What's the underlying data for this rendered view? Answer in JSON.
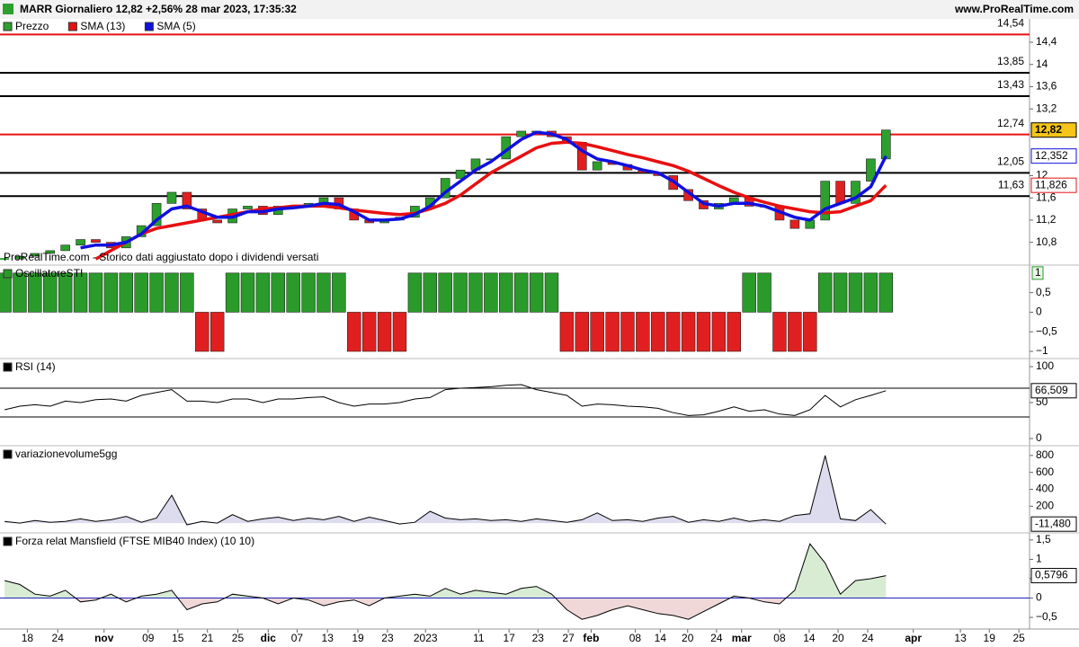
{
  "header": {
    "title": "MARR Giornaliero 12,82 +2,56% 28 mar 2023, 17:35:32",
    "site": "www.ProRealTime.com",
    "watermark": "ProRealTime.com - Storico dati aggiustato dopo i dividendi versati"
  },
  "chart_data": [
    {
      "type": "candlestick",
      "x": [
        0,
        2,
        4,
        6,
        8,
        10,
        12,
        14,
        16,
        18,
        20,
        22,
        24,
        26,
        28,
        30,
        32,
        34,
        36,
        38,
        40,
        42,
        44,
        46,
        48,
        50,
        52,
        54,
        56,
        58,
        60,
        62,
        64,
        66,
        68,
        70,
        72,
        74,
        76,
        78,
        80,
        82,
        84,
        86,
        88,
        90,
        92,
        94,
        96,
        98,
        100,
        102,
        104,
        106,
        108,
        110,
        112,
        114,
        116
      ],
      "xlim": [
        -0.6,
        134.9
      ],
      "xticks": [
        {
          "value": 3,
          "label": "18"
        },
        {
          "value": 7,
          "label": "24"
        },
        {
          "value": 13.1,
          "label": "nov"
        },
        {
          "value": 18.9,
          "label": "09"
        },
        {
          "value": 22.8,
          "label": "15"
        },
        {
          "value": 26.7,
          "label": "21"
        },
        {
          "value": 30.7,
          "label": "25"
        },
        {
          "value": 34.7,
          "label": "dic"
        },
        {
          "value": 38.5,
          "label": "07"
        },
        {
          "value": 42.5,
          "label": "13"
        },
        {
          "value": 46.5,
          "label": "19"
        },
        {
          "value": 50.4,
          "label": "23"
        },
        {
          "value": 55.4,
          "label": "2023"
        },
        {
          "value": 62.4,
          "label": "11"
        },
        {
          "value": 66.4,
          "label": "17"
        },
        {
          "value": 70.2,
          "label": "23"
        },
        {
          "value": 74.2,
          "label": "27"
        },
        {
          "value": 77.2,
          "label": "feb"
        },
        {
          "value": 83,
          "label": "08"
        },
        {
          "value": 86.3,
          "label": "14"
        },
        {
          "value": 89.9,
          "label": "20"
        },
        {
          "value": 93.7,
          "label": "24"
        },
        {
          "value": 97,
          "label": "mar"
        },
        {
          "value": 102,
          "label": "08"
        },
        {
          "value": 105.9,
          "label": "14"
        },
        {
          "value": 109.7,
          "label": "20"
        },
        {
          "value": 113.6,
          "label": "24"
        },
        {
          "value": 119.6,
          "label": "apr"
        },
        {
          "value": 125.8,
          "label": "13"
        },
        {
          "value": 129.6,
          "label": "19"
        },
        {
          "value": 133.5,
          "label": "25"
        }
      ],
      "ylim": [
        10.39,
        14.82
      ],
      "yticks": [
        {
          "value": 14.4,
          "label": "14,4"
        },
        14,
        {
          "value": 13.6,
          "label": "13,6"
        },
        {
          "value": 13.2,
          "label": "13,2"
        },
        12,
        {
          "value": 11.6,
          "label": "11,6"
        },
        {
          "value": 11.2,
          "label": "11,2"
        },
        {
          "value": 10.8,
          "label": "10,8"
        }
      ],
      "up_color": "#2ca02c",
      "down_color": "#e02020",
      "series": [
        {
          "name": "Prezzo",
          "color": "#2ca02c",
          "last_label": "12,82",
          "values": [
            10.5,
            10.55,
            10.6,
            10.65,
            10.75,
            10.85,
            10.8,
            10.7,
            10.9,
            11.1,
            11.5,
            11.7,
            11.4,
            11.2,
            11.15,
            11.4,
            11.45,
            11.3,
            11.45,
            11.45,
            11.5,
            11.6,
            11.4,
            11.2,
            11.15,
            11.2,
            11.25,
            11.45,
            11.6,
            11.95,
            12.1,
            12.3,
            12.3,
            12.7,
            12.8,
            12.8,
            12.7,
            12.6,
            12.1,
            12.25,
            12.2,
            12.1,
            12.05,
            12.0,
            11.75,
            11.55,
            11.4,
            11.5,
            11.6,
            11.45,
            11.45,
            11.2,
            11.05,
            11.2,
            11.9,
            11.5,
            11.9,
            12.3,
            12.82
          ]
        },
        {
          "name": "SMA (13)",
          "color": "#e81010",
          "last_label": "11,826",
          "values": [
            null,
            null,
            null,
            null,
            null,
            null,
            10.5,
            10.65,
            10.8,
            10.95,
            11.05,
            11.1,
            11.15,
            11.2,
            11.25,
            11.3,
            11.35,
            11.4,
            11.42,
            11.45,
            11.45,
            11.45,
            11.42,
            11.38,
            11.35,
            11.32,
            11.3,
            11.32,
            11.4,
            11.5,
            11.65,
            11.85,
            12.05,
            12.2,
            12.35,
            12.5,
            12.58,
            12.6,
            12.58,
            12.52,
            12.45,
            12.38,
            12.32,
            12.25,
            12.18,
            12.08,
            11.95,
            11.82,
            11.7,
            11.6,
            11.52,
            11.45,
            11.4,
            11.35,
            11.33,
            11.35,
            11.45,
            11.55,
            11.826
          ]
        },
        {
          "name": "SMA (5)",
          "color": "#1010e0",
          "last_label": "12,352",
          "values": [
            null,
            null,
            null,
            null,
            null,
            10.7,
            10.75,
            10.75,
            10.8,
            10.95,
            11.2,
            11.4,
            11.45,
            11.35,
            11.25,
            11.25,
            11.35,
            11.35,
            11.4,
            11.42,
            11.45,
            11.5,
            11.48,
            11.35,
            11.2,
            11.2,
            11.22,
            11.3,
            11.45,
            11.7,
            11.9,
            12.1,
            12.25,
            12.45,
            12.65,
            12.78,
            12.75,
            12.65,
            12.45,
            12.3,
            12.25,
            12.18,
            12.1,
            12.05,
            11.9,
            11.7,
            11.5,
            11.45,
            11.5,
            11.5,
            11.45,
            11.35,
            11.25,
            11.2,
            11.4,
            11.5,
            11.6,
            11.8,
            12.352
          ]
        }
      ],
      "levels": [
        {
          "value": 14.54,
          "label": "14,54",
          "color": "#e81010"
        },
        {
          "value": 13.85,
          "label": "13,85",
          "color": "#000000"
        },
        {
          "value": 13.43,
          "label": "13,43",
          "color": "#000000"
        },
        {
          "value": 12.74,
          "label": "12,74",
          "color": "#e81010"
        },
        {
          "value": 12.05,
          "label": "12,05",
          "color": "#000000"
        },
        {
          "value": 11.63,
          "label": "11,63",
          "color": "#000000"
        }
      ]
    },
    {
      "type": "bar",
      "name": "OscillatoreSTI",
      "up_color": "#2a9a2a",
      "down_color": "#e02020",
      "last_label": "1",
      "ylim": [
        -1.16,
        1.18
      ],
      "yticks": [
        {
          "value": 0.5,
          "label": "0,5"
        },
        0,
        {
          "value": -0.5,
          "label": "−0,5"
        },
        {
          "value": -1,
          "label": "−1"
        }
      ],
      "values": [
        1,
        1,
        1,
        1,
        1,
        1,
        1,
        1,
        1,
        1,
        1,
        1,
        1,
        -1,
        -1,
        1,
        1,
        1,
        1,
        1,
        1,
        1,
        1,
        -1,
        -1,
        -1,
        -1,
        1,
        1,
        1,
        1,
        1,
        1,
        1,
        1,
        1,
        1,
        -1,
        -1,
        -1,
        -1,
        -1,
        -1,
        -1,
        -1,
        -1,
        -1,
        -1,
        -1,
        1,
        1,
        -1,
        -1,
        -1,
        1,
        1,
        1,
        1,
        1
      ]
    },
    {
      "type": "line",
      "name": "RSI (14)",
      "color": "#000000",
      "last_label": "66,509",
      "ylim": [
        -8.75,
        110
      ],
      "yticks": [
        100,
        50,
        0
      ],
      "levels": [
        70,
        30
      ],
      "values": [
        40,
        45,
        47,
        45,
        52,
        50,
        54,
        55,
        52,
        60,
        64,
        68,
        52,
        52,
        50,
        55,
        55,
        50,
        55,
        55,
        57,
        58,
        50,
        45,
        48,
        48,
        50,
        55,
        57,
        68,
        70,
        71,
        72,
        74,
        75,
        68,
        64,
        60,
        45,
        48,
        47,
        45,
        44,
        42,
        36,
        32,
        33,
        38,
        44,
        38,
        40,
        34,
        32,
        40,
        60,
        44,
        54,
        60,
        66.509
      ]
    },
    {
      "type": "area",
      "name": "variazionevolume5gg",
      "color": "#000000",
      "fill": "#dcdcee",
      "last_label": "-11,480",
      "ylim": [
        -105,
        905
      ],
      "yticks": [
        800,
        600,
        400,
        200
      ],
      "values": [
        20,
        0,
        30,
        10,
        20,
        50,
        20,
        40,
        80,
        10,
        60,
        330,
        -20,
        20,
        0,
        100,
        20,
        50,
        70,
        30,
        60,
        40,
        80,
        20,
        70,
        30,
        -10,
        10,
        140,
        60,
        40,
        50,
        30,
        40,
        20,
        50,
        30,
        10,
        40,
        120,
        30,
        40,
        20,
        60,
        80,
        10,
        40,
        20,
        60,
        20,
        40,
        20,
        90,
        110,
        800,
        50,
        30,
        160,
        -11.48
      ]
    },
    {
      "type": "area",
      "name": "Forza relat Mansfield (FTSE MIB40 Index) (10 10)",
      "color": "#000000",
      "fill": "#d8ecd4",
      "neg_fill": "#f0d8d8",
      "zero_color": "#2020c0",
      "last_label": "0,5796",
      "ylim": [
        -0.8,
        1.66
      ],
      "yticks": [
        {
          "value": 1.5,
          "label": "1,5"
        },
        1,
        {
          "value": 0.5,
          "label": "0,5"
        },
        0,
        {
          "value": -0.5,
          "label": "−0,5"
        }
      ],
      "values": [
        0.45,
        0.35,
        0.1,
        0.05,
        0.2,
        -0.1,
        -0.05,
        0.1,
        -0.1,
        0.05,
        0.1,
        0.2,
        -0.3,
        -0.15,
        -0.1,
        0.1,
        0.05,
        0,
        -0.15,
        0,
        -0.05,
        -0.2,
        -0.1,
        -0.05,
        -0.2,
        0,
        0.05,
        0.1,
        0.05,
        0.25,
        0.1,
        0.2,
        0.15,
        0.1,
        0.25,
        0.3,
        0.1,
        -0.3,
        -0.55,
        -0.45,
        -0.3,
        -0.2,
        -0.3,
        -0.4,
        -0.45,
        -0.55,
        -0.35,
        -0.15,
        0.05,
        0,
        -0.1,
        -0.15,
        0.2,
        1.4,
        0.9,
        0.1,
        0.45,
        0.5,
        0.5796
      ]
    }
  ]
}
